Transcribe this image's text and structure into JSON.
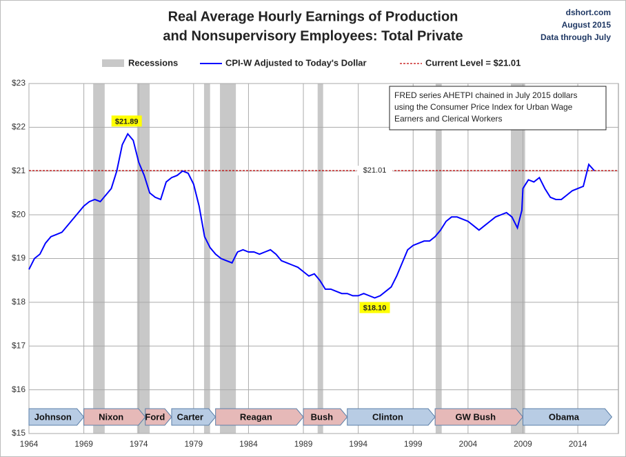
{
  "chart_data": {
    "type": "line",
    "title": [
      "Real Average Hourly Earnings of Production",
      "and Nonsupervisory Employees: Total Private"
    ],
    "source": [
      "dshort.com",
      "August 2015",
      "Data through July"
    ],
    "note": [
      "FRED series AHETPI chained in July 2015 dollars",
      "using the Consumer Price Index for Urban Wage",
      "Earners and Clerical Workers"
    ],
    "xlim": [
      1964,
      2017.7
    ],
    "xticks": [
      1964,
      1969,
      1974,
      1979,
      1984,
      1989,
      1994,
      1999,
      2004,
      2009,
      2014
    ],
    "ylim": [
      15,
      23
    ],
    "yticks": [
      {
        "value": 15,
        "label": "$15"
      },
      {
        "value": 16,
        "label": "$16"
      },
      {
        "value": 17,
        "label": "$17"
      },
      {
        "value": 18,
        "label": "$18"
      },
      {
        "value": 19,
        "label": "$19"
      },
      {
        "value": 20,
        "label": "$20"
      },
      {
        "value": 21,
        "label": "$21"
      },
      {
        "value": 22,
        "label": "$22"
      },
      {
        "value": 23,
        "label": "$23"
      }
    ],
    "grid": true,
    "recessions": {
      "name": "Recessions",
      "color": "#c8c8c8",
      "spans": [
        [
          1969.85,
          1970.9
        ],
        [
          1973.85,
          1975.0
        ],
        [
          1979.95,
          1980.5
        ],
        [
          1981.4,
          1982.85
        ],
        [
          1990.3,
          1990.8
        ],
        [
          2001.05,
          2001.6
        ],
        [
          2007.9,
          2009.2
        ]
      ]
    },
    "reference": {
      "name": "Current Level = $21.01",
      "value": 21.01,
      "label": "$21.01",
      "label_x": 1995.5,
      "color": "#c00000"
    },
    "series": [
      {
        "name": "CPI-W Adjusted to Today's Dollar",
        "color": "#0000ff",
        "x": [
          1964.0,
          1964.5,
          1965.0,
          1965.5,
          1966.0,
          1966.5,
          1967.0,
          1967.5,
          1968.0,
          1968.5,
          1969.0,
          1969.5,
          1970.0,
          1970.5,
          1971.0,
          1971.5,
          1972.0,
          1972.5,
          1973.0,
          1973.5,
          1974.0,
          1974.5,
          1975.0,
          1975.5,
          1976.0,
          1976.5,
          1977.0,
          1977.5,
          1978.0,
          1978.5,
          1979.0,
          1979.5,
          1980.0,
          1980.5,
          1981.0,
          1981.5,
          1982.0,
          1982.5,
          1983.0,
          1983.5,
          1984.0,
          1984.5,
          1985.0,
          1985.5,
          1986.0,
          1986.5,
          1987.0,
          1987.5,
          1988.0,
          1988.5,
          1989.0,
          1989.5,
          1990.0,
          1990.5,
          1991.0,
          1991.5,
          1992.0,
          1992.5,
          1993.0,
          1993.5,
          1994.0,
          1994.5,
          1995.0,
          1995.5,
          1996.0,
          1996.5,
          1997.0,
          1997.5,
          1998.0,
          1998.5,
          1999.0,
          1999.5,
          2000.0,
          2000.5,
          2001.0,
          2001.5,
          2002.0,
          2002.5,
          2003.0,
          2003.5,
          2004.0,
          2004.5,
          2005.0,
          2005.5,
          2006.0,
          2006.5,
          2007.0,
          2007.5,
          2008.0,
          2008.5,
          2008.9,
          2009.0,
          2009.5,
          2010.0,
          2010.5,
          2011.0,
          2011.5,
          2012.0,
          2012.5,
          2013.0,
          2013.5,
          2014.0,
          2014.5,
          2015.0,
          2015.5
        ],
        "values": [
          18.75,
          19.0,
          19.1,
          19.35,
          19.5,
          19.55,
          19.6,
          19.75,
          19.9,
          20.05,
          20.2,
          20.3,
          20.35,
          20.3,
          20.45,
          20.6,
          21.0,
          21.6,
          21.85,
          21.7,
          21.2,
          20.9,
          20.5,
          20.4,
          20.35,
          20.75,
          20.85,
          20.9,
          21.0,
          20.95,
          20.7,
          20.2,
          19.5,
          19.25,
          19.1,
          19.0,
          18.95,
          18.9,
          19.15,
          19.2,
          19.15,
          19.15,
          19.1,
          19.15,
          19.2,
          19.1,
          18.95,
          18.9,
          18.85,
          18.8,
          18.7,
          18.6,
          18.65,
          18.5,
          18.3,
          18.3,
          18.25,
          18.2,
          18.2,
          18.15,
          18.15,
          18.2,
          18.15,
          18.1,
          18.15,
          18.25,
          18.35,
          18.6,
          18.9,
          19.2,
          19.3,
          19.35,
          19.4,
          19.4,
          19.5,
          19.65,
          19.85,
          19.95,
          19.95,
          19.9,
          19.85,
          19.75,
          19.65,
          19.75,
          19.85,
          19.95,
          20.0,
          20.05,
          19.95,
          19.7,
          20.1,
          20.6,
          20.8,
          20.75,
          20.85,
          20.6,
          20.4,
          20.35,
          20.35,
          20.45,
          20.55,
          20.6,
          20.65,
          21.15,
          21.01
        ]
      }
    ],
    "annotations": [
      {
        "x": 1972.9,
        "value": 21.89,
        "label": "$21.89",
        "color": "#ffff00"
      },
      {
        "x": 1995.5,
        "value": 18.1,
        "label": "$18.10",
        "color": "#ffff00"
      }
    ],
    "presidents": [
      {
        "name": "Johnson",
        "start": 1964,
        "end": 1969,
        "color": "#b8cce4"
      },
      {
        "name": "Nixon",
        "start": 1969,
        "end": 1974.6,
        "color": "#e6b9b8"
      },
      {
        "name": "Ford",
        "start": 1974.6,
        "end": 1977,
        "color": "#e6b9b8"
      },
      {
        "name": "Carter",
        "start": 1977,
        "end": 1981,
        "color": "#b8cce4"
      },
      {
        "name": "Reagan",
        "start": 1981,
        "end": 1989,
        "color": "#e6b9b8"
      },
      {
        "name": "Bush",
        "start": 1989,
        "end": 1993,
        "color": "#e6b9b8"
      },
      {
        "name": "Clinton",
        "start": 1993,
        "end": 2001,
        "color": "#b8cce4"
      },
      {
        "name": "GW Bush",
        "start": 2001,
        "end": 2009,
        "color": "#e6b9b8"
      },
      {
        "name": "Obama",
        "start": 2009,
        "end": 2017.1,
        "color": "#b8cce4"
      }
    ]
  }
}
